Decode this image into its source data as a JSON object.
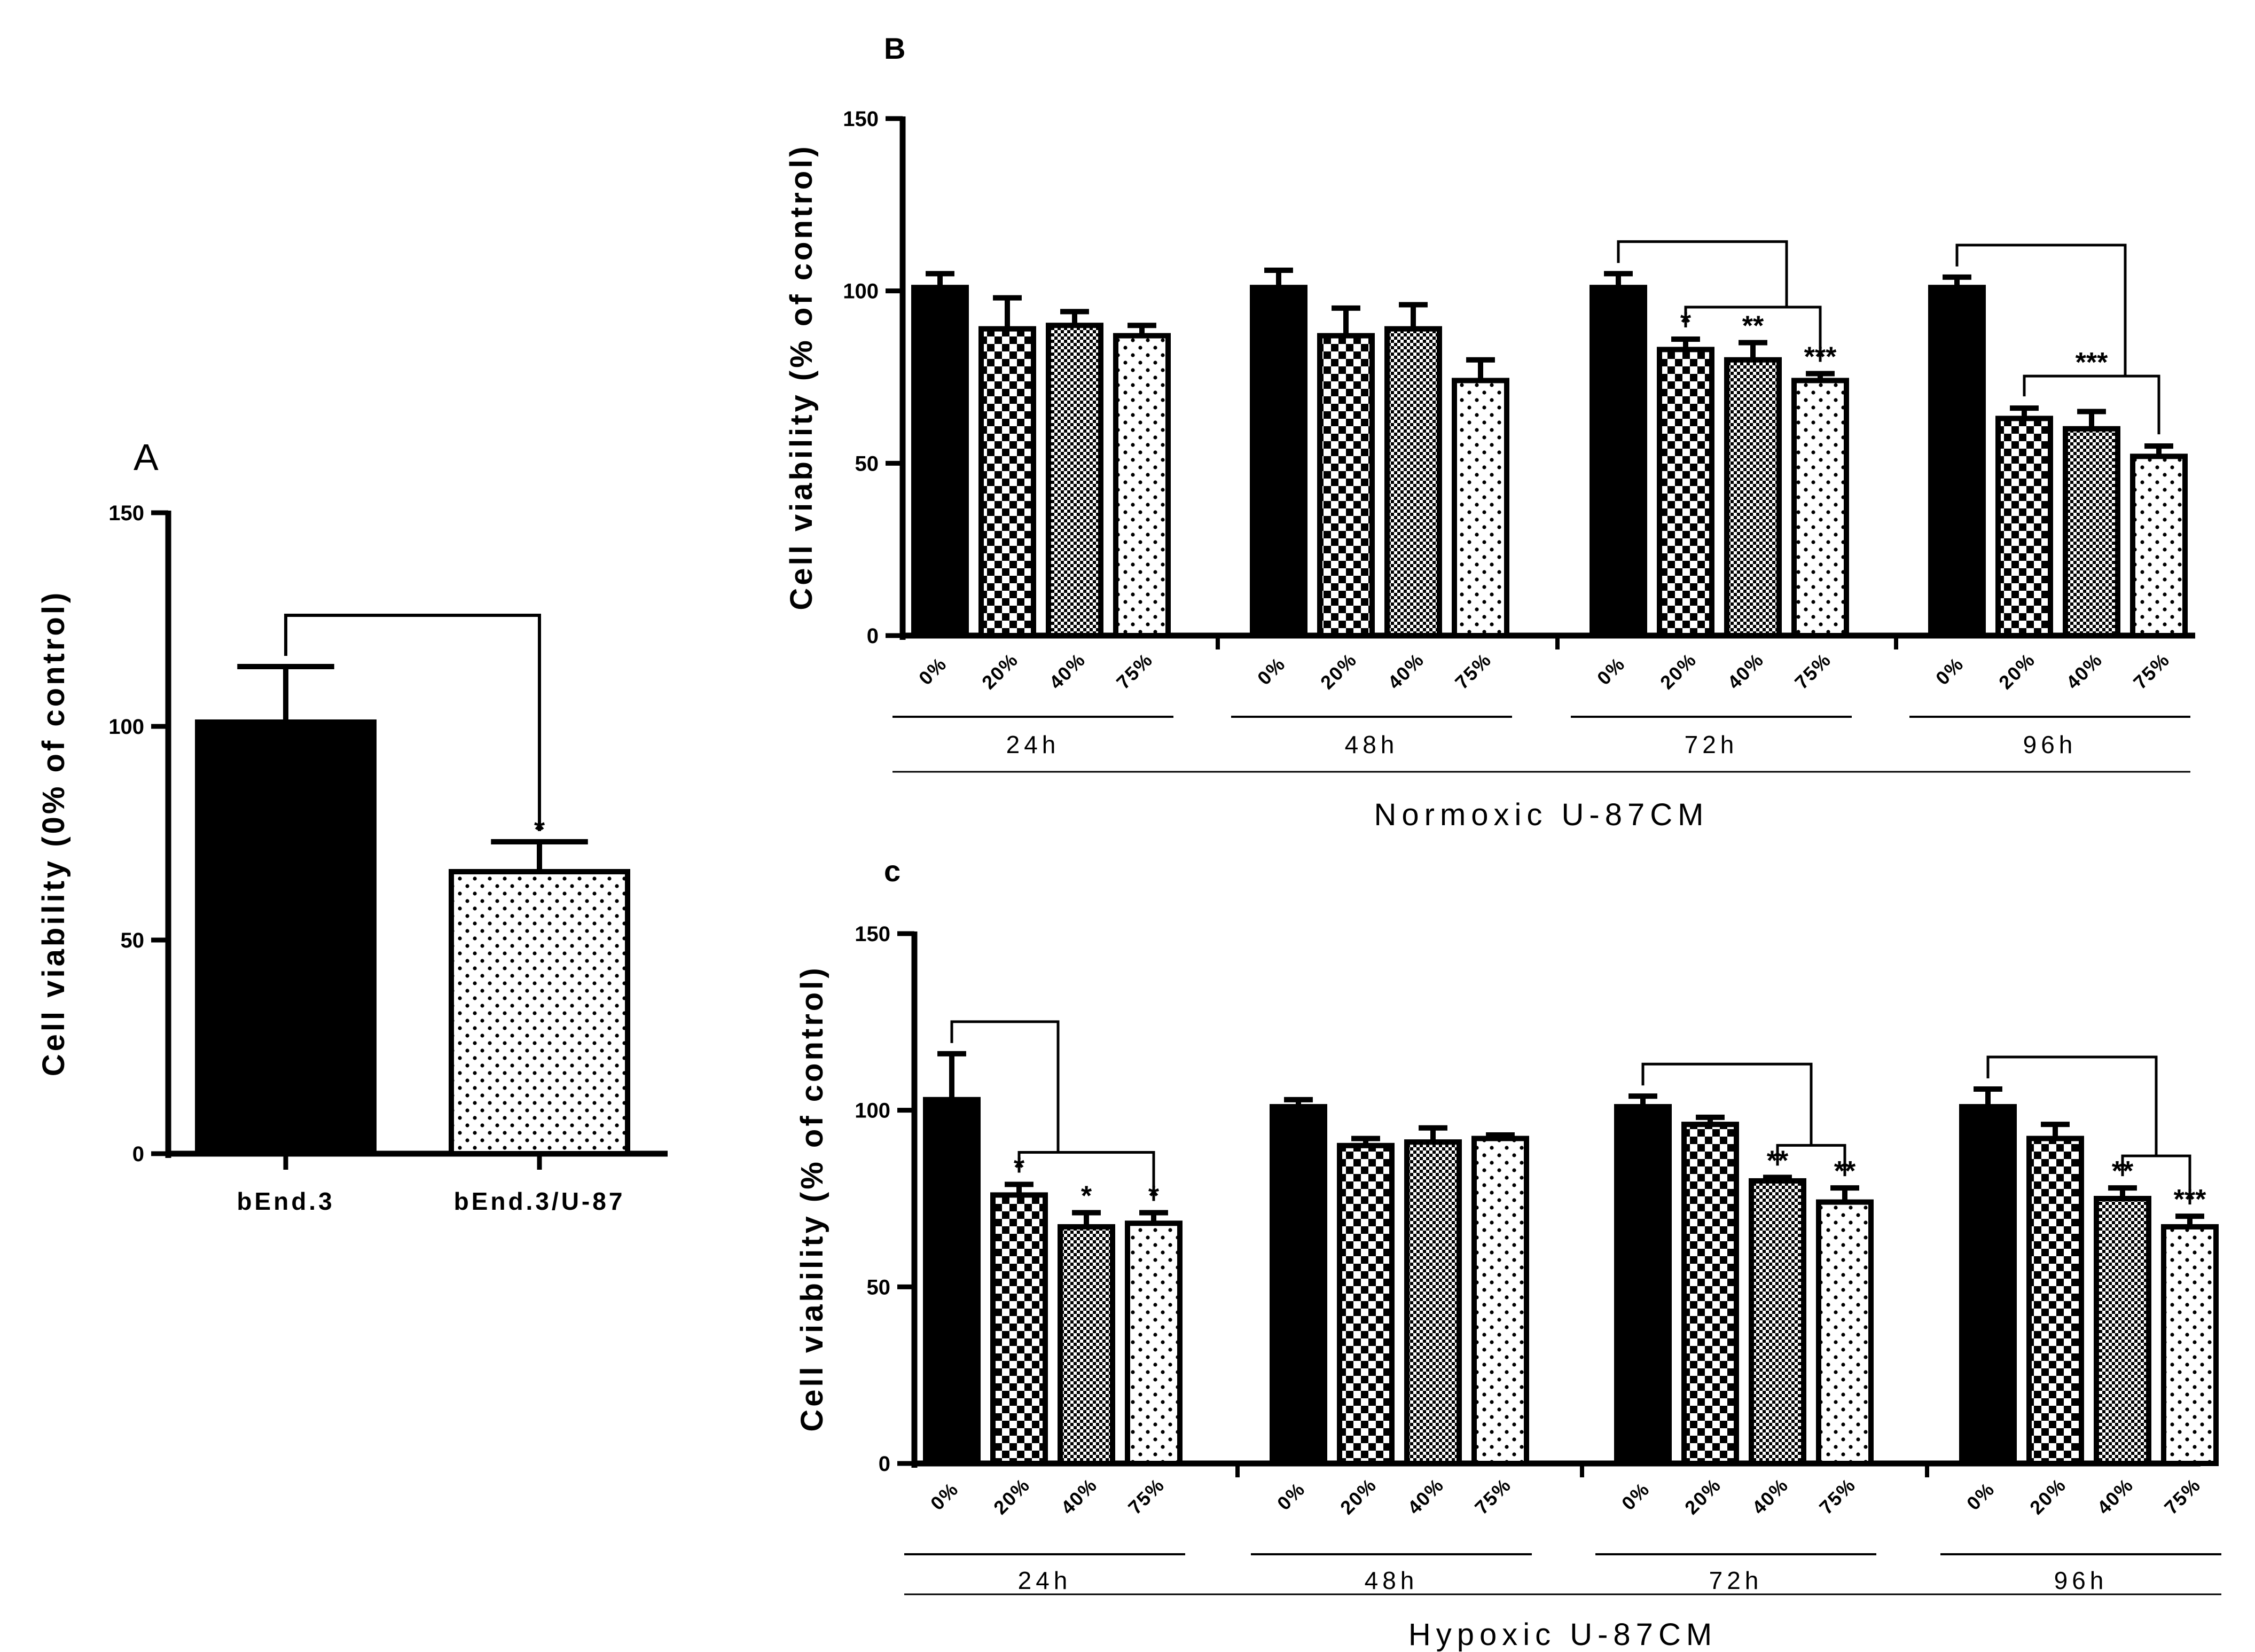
{
  "chart_data": [
    {
      "id": "A",
      "panel_label": "A",
      "type": "bar",
      "ylabel": "Cell viability (0% of control)",
      "ylim": [
        0,
        150
      ],
      "yticks": [
        0,
        50,
        100,
        150
      ],
      "categories": [
        "bEnd.3",
        "bEnd.3/U-87"
      ],
      "values": [
        101,
        66
      ],
      "errors": [
        13,
        7
      ],
      "patterns": [
        "solid",
        "dots"
      ],
      "significance": [
        {
          "from": 0,
          "to": 1,
          "label": "*"
        }
      ]
    },
    {
      "id": "B",
      "panel_label": "B",
      "type": "bar",
      "ylabel": "Cell viability (% of control)",
      "ylim": [
        0,
        150
      ],
      "yticks": [
        0,
        50,
        100,
        150
      ],
      "condition": "Normoxic U-87CM",
      "concentrations": [
        "0%",
        "20%",
        "40%",
        "75%"
      ],
      "patterns": [
        "solid",
        "checker",
        "fine",
        "dots"
      ],
      "groups": [
        {
          "label": "24h",
          "values": [
            101,
            89,
            90,
            87
          ],
          "errors": [
            4,
            9,
            4,
            3
          ],
          "stars": [
            "",
            "",
            "",
            ""
          ]
        },
        {
          "label": "48h",
          "values": [
            101,
            87,
            89,
            74
          ],
          "errors": [
            5,
            8,
            7,
            6
          ],
          "stars": [
            "",
            "",
            "",
            ""
          ]
        },
        {
          "label": "72h",
          "values": [
            101,
            83,
            80,
            74
          ],
          "errors": [
            4,
            3,
            5,
            2
          ],
          "stars": [
            "",
            "*",
            "**",
            "***"
          ]
        },
        {
          "label": "96h",
          "values": [
            101,
            63,
            60,
            52
          ],
          "errors": [
            3,
            3,
            5,
            3
          ],
          "stars": [
            "",
            "",
            "",
            ""
          ]
        }
      ],
      "brackets": [
        {
          "group": 2,
          "outer_to": 3,
          "inner_from": 1,
          "inner_to": 3,
          "label": ""
        },
        {
          "group": 3,
          "outer_to": 3,
          "inner_from": 1,
          "inner_to": 3,
          "label": "***"
        }
      ]
    },
    {
      "id": "C",
      "panel_label": "c",
      "type": "bar",
      "ylabel": "Cell viability (% of control)",
      "ylim": [
        0,
        150
      ],
      "yticks": [
        0,
        50,
        100,
        150
      ],
      "condition": "Hypoxic U-87CM",
      "concentrations": [
        "0%",
        "20%",
        "40%",
        "75%"
      ],
      "patterns": [
        "solid",
        "checker",
        "fine",
        "dots"
      ],
      "groups": [
        {
          "label": "24h",
          "values": [
            103,
            76,
            67,
            68
          ],
          "errors": [
            13,
            3,
            4,
            3
          ],
          "stars": [
            "",
            "*",
            "*",
            "*"
          ]
        },
        {
          "label": "48h",
          "values": [
            101,
            90,
            91,
            92
          ],
          "errors": [
            2,
            2,
            4,
            1
          ],
          "stars": [
            "",
            "",
            "",
            ""
          ]
        },
        {
          "label": "72h",
          "values": [
            101,
            96,
            80,
            74
          ],
          "errors": [
            3,
            2,
            1,
            4
          ],
          "stars": [
            "",
            "",
            "**",
            "**"
          ]
        },
        {
          "label": "96h",
          "values": [
            101,
            92,
            75,
            67
          ],
          "errors": [
            5,
            4,
            3,
            3
          ],
          "stars": [
            "",
            "",
            "**",
            "***"
          ]
        }
      ],
      "brackets": [
        {
          "group": 0,
          "outer_to": 2,
          "inner_from": 1,
          "inner_to": 3,
          "label": ""
        },
        {
          "group": 2,
          "outer_to": 3,
          "inner_from": 2,
          "inner_to": 3,
          "label": ""
        },
        {
          "group": 3,
          "outer_to": 3,
          "inner_from": 2,
          "inner_to": 3,
          "label": ""
        }
      ]
    }
  ]
}
